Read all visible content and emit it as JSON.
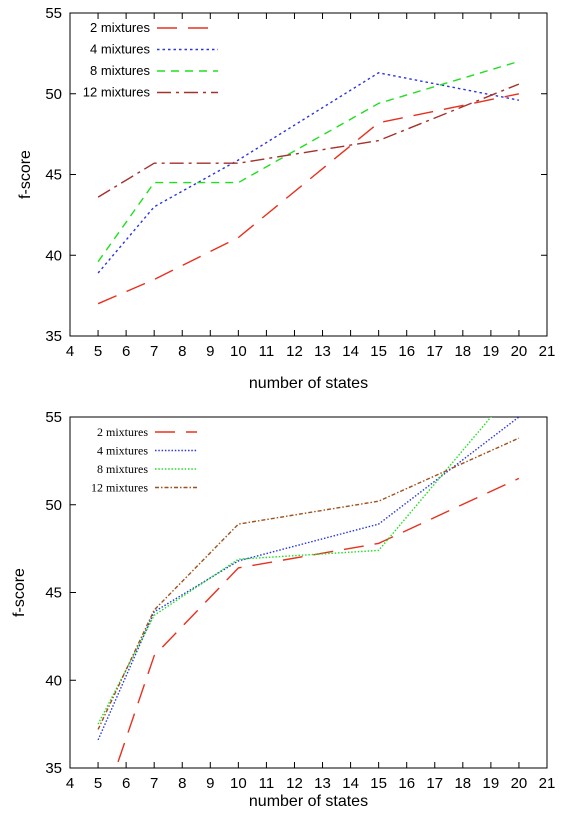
{
  "chart_data": [
    {
      "type": "line",
      "title": "",
      "xlabel": "number of states",
      "ylabel": "f-score",
      "xlim": [
        4,
        21
      ],
      "ylim": [
        35,
        55
      ],
      "xticks": [
        4,
        5,
        6,
        7,
        8,
        9,
        10,
        11,
        12,
        13,
        14,
        15,
        16,
        17,
        18,
        19,
        20,
        21
      ],
      "yticks": [
        35,
        40,
        45,
        50,
        55
      ],
      "grid": false,
      "legend_position": "top-left",
      "series": [
        {
          "name": "2 mixtures",
          "color": "#e8301e",
          "dash": "long-dash",
          "x": [
            5,
            7,
            10,
            15,
            20
          ],
          "y": [
            37.0,
            38.5,
            41.1,
            48.2,
            50.0
          ]
        },
        {
          "name": "4 mixtures",
          "color": "#2a35e0",
          "dash": "dotted",
          "x": [
            5,
            7,
            10,
            15,
            20
          ],
          "y": [
            38.9,
            43.0,
            45.9,
            51.3,
            49.6
          ]
        },
        {
          "name": "8 mixtures",
          "color": "#1ee01e",
          "dash": "dashed",
          "x": [
            5,
            7,
            10,
            15,
            20
          ],
          "y": [
            39.6,
            44.5,
            44.5,
            49.4,
            52.0
          ]
        },
        {
          "name": "12 mixtures",
          "color": "#a3312c",
          "dash": "dash-dot",
          "x": [
            5,
            7,
            10,
            15,
            20
          ],
          "y": [
            43.6,
            45.7,
            45.7,
            47.1,
            50.6
          ]
        }
      ]
    },
    {
      "type": "line",
      "title": "",
      "xlabel": "number of states",
      "ylabel": "f-score",
      "xlim": [
        4,
        21
      ],
      "ylim": [
        35,
        55
      ],
      "xticks": [
        4,
        5,
        6,
        7,
        8,
        9,
        10,
        11,
        12,
        13,
        14,
        15,
        16,
        17,
        18,
        19,
        20,
        21
      ],
      "yticks": [
        35,
        40,
        45,
        50,
        55
      ],
      "grid": false,
      "legend_position": "top-left",
      "series": [
        {
          "name": "2 mixtures",
          "color": "#e8301e",
          "dash": "long-dash",
          "x": [
            5,
            7,
            10,
            15,
            20
          ],
          "y": [
            32.0,
            41.4,
            46.4,
            47.8,
            51.5
          ]
        },
        {
          "name": "4 mixtures",
          "color": "#2a35e0",
          "dash": "fine-dot",
          "x": [
            5,
            7,
            10,
            15,
            20
          ],
          "y": [
            36.6,
            43.9,
            46.8,
            48.9,
            55.0
          ]
        },
        {
          "name": "8 mixtures",
          "color": "#1ee01e",
          "dash": "fine-dot",
          "x": [
            5,
            7,
            10,
            15,
            19,
            20
          ],
          "y": [
            37.5,
            43.7,
            46.9,
            47.4,
            55.0,
            55.4
          ]
        },
        {
          "name": "12 mixtures",
          "color": "#a0501c",
          "dash": "dot-dash",
          "x": [
            5,
            7,
            10,
            15,
            20
          ],
          "y": [
            37.2,
            44.0,
            48.9,
            50.2,
            53.8
          ]
        }
      ]
    }
  ]
}
